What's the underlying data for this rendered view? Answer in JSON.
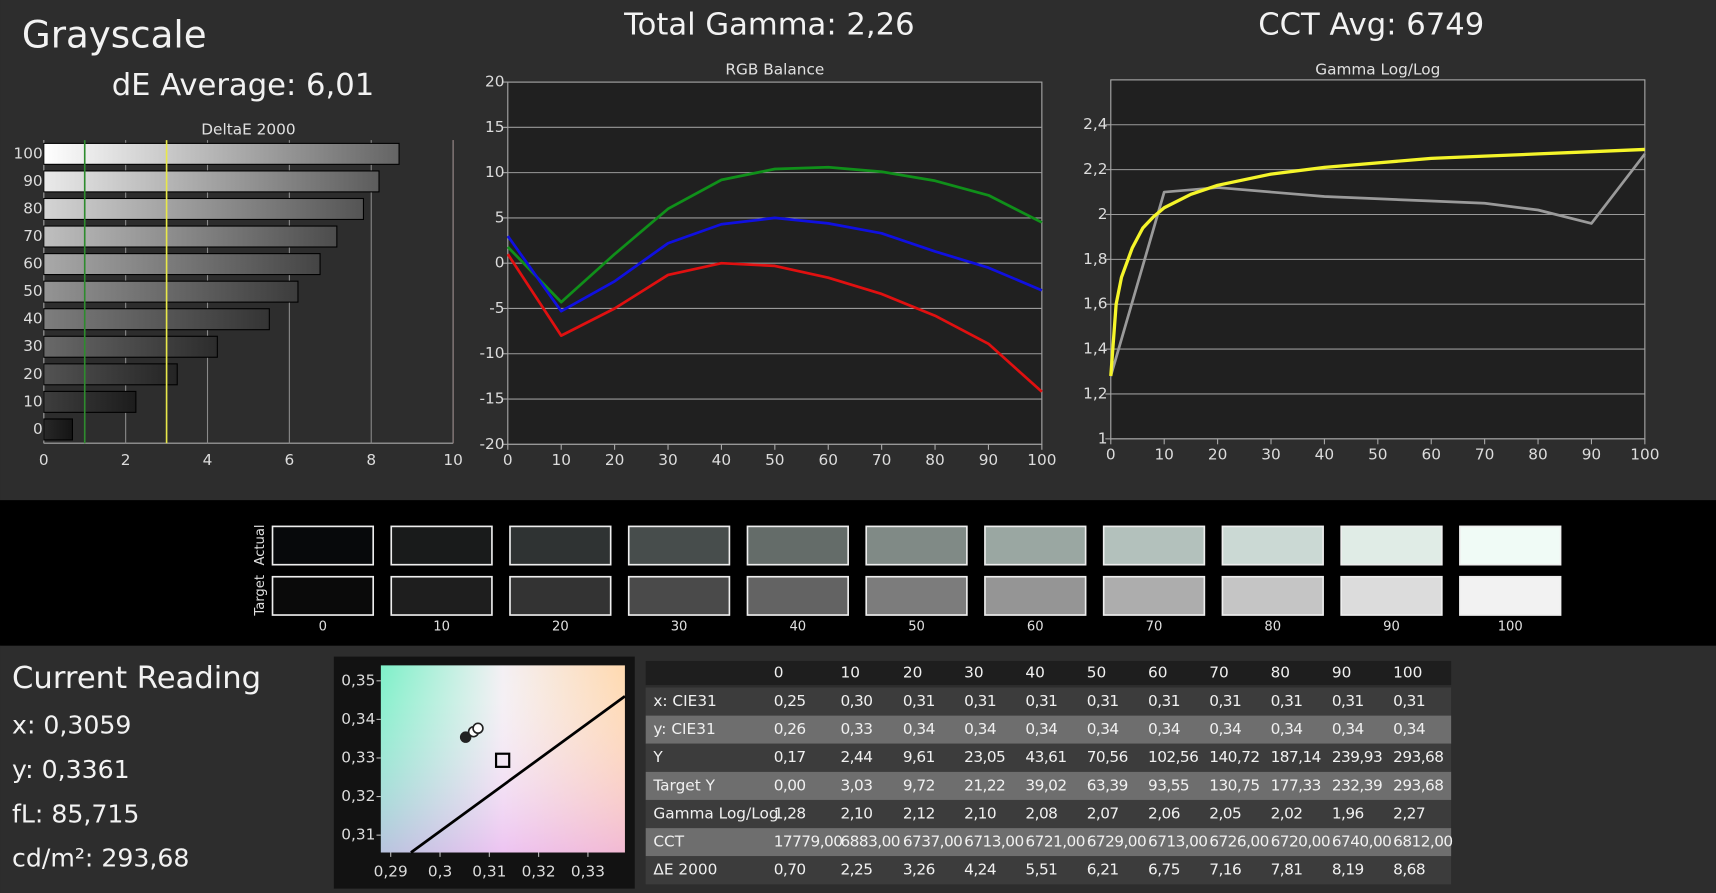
{
  "header": {
    "title": "Grayscale",
    "de_average": "dE Average: 6,01",
    "total_gamma": "Total Gamma: 2,26",
    "cct_avg": "CCT Avg: 6749"
  },
  "chart_data": [
    {
      "type": "bar",
      "orientation": "horizontal",
      "title": "DeltaE 2000",
      "categories": [
        "0",
        "10",
        "20",
        "30",
        "40",
        "50",
        "60",
        "70",
        "80",
        "90",
        "100"
      ],
      "values": [
        0.7,
        2.25,
        3.26,
        4.24,
        5.51,
        6.21,
        6.75,
        7.16,
        7.81,
        8.19,
        8.68
      ],
      "xlim": [
        0,
        10
      ],
      "xticks": [
        0,
        2,
        4,
        6,
        8,
        10
      ],
      "grid": true,
      "reference_lines": [
        {
          "value": 1,
          "color": "#2e8b2e"
        },
        {
          "value": 3,
          "color": "#e8e84a"
        }
      ]
    },
    {
      "type": "line",
      "title": "RGB Balance",
      "x": [
        0,
        10,
        20,
        30,
        40,
        50,
        60,
        70,
        80,
        90,
        100
      ],
      "series": [
        {
          "color": "#e01010",
          "values": [
            1,
            -8,
            -5,
            -1.3,
            0,
            -0.3,
            -1.6,
            -3.4,
            -5.8,
            -8.9,
            -14.2
          ]
        },
        {
          "color": "#10901a",
          "values": [
            1.8,
            -4.3,
            1,
            6,
            9.2,
            10.4,
            10.6,
            10.1,
            9.1,
            7.5,
            4.5
          ]
        },
        {
          "color": "#1010e0",
          "values": [
            3,
            -5.3,
            -2,
            2.2,
            4.3,
            5,
            4.4,
            3.3,
            1.3,
            -0.5,
            -3
          ]
        }
      ],
      "xlim": [
        0,
        100
      ],
      "xticks": [
        0,
        10,
        20,
        30,
        40,
        50,
        60,
        70,
        80,
        90,
        100
      ],
      "ylim": [
        -20,
        20
      ],
      "yticks": [
        -20,
        -15,
        -10,
        -5,
        0,
        5,
        10,
        15,
        20
      ],
      "grid": true
    },
    {
      "type": "line",
      "title": "Gamma Log/Log",
      "x": [
        0,
        10,
        20,
        30,
        40,
        50,
        60,
        70,
        80,
        90,
        100
      ],
      "series": [
        {
          "color": "#9a9a9a",
          "values": [
            1.28,
            2.1,
            2.12,
            2.1,
            2.08,
            2.07,
            2.06,
            2.05,
            2.02,
            1.96,
            2.27
          ]
        },
        {
          "color": "#f5f52a",
          "x": [
            0,
            1,
            2,
            4,
            6,
            8,
            10,
            15,
            20,
            30,
            40,
            50,
            60,
            70,
            80,
            90,
            100
          ],
          "values": [
            1.28,
            1.6,
            1.72,
            1.85,
            1.94,
            1.99,
            2.03,
            2.09,
            2.13,
            2.18,
            2.21,
            2.23,
            2.25,
            2.26,
            2.27,
            2.28,
            2.29
          ]
        }
      ],
      "xlim": [
        0,
        100
      ],
      "xticks": [
        0,
        10,
        20,
        30,
        40,
        50,
        60,
        70,
        80,
        90,
        100
      ],
      "ylim": [
        1,
        2.6
      ],
      "yticks": [
        1,
        {
          "value": 1.2,
          "label": "1,2"
        },
        {
          "value": 1.4,
          "label": "1,4"
        },
        {
          "value": 1.6,
          "label": "1,6"
        },
        {
          "value": 1.8,
          "label": "1,8"
        },
        2,
        {
          "value": 2.2,
          "label": "2,2"
        },
        {
          "value": 2.4,
          "label": "2,4"
        }
      ],
      "grid": true
    },
    {
      "type": "scatter",
      "xlim": [
        0.288,
        0.3375
      ],
      "ylim": [
        0.3055,
        0.354
      ],
      "xticks": [
        {
          "value": 0.29,
          "label": "0,29"
        },
        {
          "value": 0.3,
          "label": "0,3"
        },
        {
          "value": 0.31,
          "label": "0,31"
        },
        {
          "value": 0.32,
          "label": "0,32"
        },
        {
          "value": 0.33,
          "label": "0,33"
        }
      ],
      "yticks": [
        {
          "value": 0.31,
          "label": "0,31"
        },
        {
          "value": 0.32,
          "label": "0,32"
        },
        {
          "value": 0.33,
          "label": "0,33"
        },
        {
          "value": 0.34,
          "label": "0,34"
        },
        {
          "value": 0.35,
          "label": "0,35"
        }
      ],
      "series": [
        {
          "marker": "line",
          "color": "#000000",
          "x": [
            0.2941,
            0.3375
          ],
          "values": [
            0.3055,
            0.346
          ]
        },
        {
          "marker": "square",
          "color": "#000000",
          "x": [
            0.3127
          ],
          "values": [
            0.3294
          ]
        },
        {
          "marker": "circle",
          "colors": [
            "#222222",
            "#ffffff",
            "#ffffff"
          ],
          "x": [
            0.3052,
            0.3068,
            0.3077
          ],
          "values": [
            0.3354,
            0.3368,
            0.3377
          ]
        }
      ]
    }
  ],
  "swatches": {
    "actual_label": "Actual",
    "target_label": "Target",
    "levels": [
      "0",
      "10",
      "20",
      "30",
      "40",
      "50",
      "60",
      "70",
      "80",
      "90",
      "100"
    ],
    "actual_colors": [
      "#07090b",
      "#191b1b",
      "#2f3333",
      "#474d4c",
      "#646c69",
      "#808a86",
      "#9aa7a2",
      "#b3c1bc",
      "#cbd9d4",
      "#e0ece6",
      "#f0fbf6"
    ],
    "target_colors": [
      "#0a0a0a",
      "#1e1e1e",
      "#333333",
      "#4a4a4a",
      "#636363",
      "#7c7c7c",
      "#959595",
      "#adadad",
      "#c5c5c5",
      "#dcdcdc",
      "#f2f2f2"
    ]
  },
  "current_reading": {
    "title": "Current Reading",
    "lines": [
      "x: 0,3059",
      "y: 0,3361",
      "fL: 85,715",
      "cd/m²: 293,68"
    ]
  },
  "table": {
    "columns": [
      "0",
      "10",
      "20",
      "30",
      "40",
      "50",
      "60",
      "70",
      "80",
      "90",
      "100"
    ],
    "rows": [
      [
        "x: CIE31",
        "0,25",
        "0,30",
        "0,31",
        "0,31",
        "0,31",
        "0,31",
        "0,31",
        "0,31",
        "0,31",
        "0,31",
        "0,31"
      ],
      [
        "y: CIE31",
        "0,26",
        "0,33",
        "0,34",
        "0,34",
        "0,34",
        "0,34",
        "0,34",
        "0,34",
        "0,34",
        "0,34",
        "0,34"
      ],
      [
        "Y",
        "0,17",
        "2,44",
        "9,61",
        "23,05",
        "43,61",
        "70,56",
        "102,56",
        "140,72",
        "187,14",
        "239,93",
        "293,68"
      ],
      [
        "Target Y",
        "0,00",
        "3,03",
        "9,72",
        "21,22",
        "39,02",
        "63,39",
        "93,55",
        "130,75",
        "177,33",
        "232,39",
        "293,68"
      ],
      [
        "Gamma Log/Log",
        "1,28",
        "2,10",
        "2,12",
        "2,10",
        "2,08",
        "2,07",
        "2,06",
        "2,05",
        "2,02",
        "1,96",
        "2,27"
      ],
      [
        "CCT",
        "17779,00",
        "6883,00",
        "6737,00",
        "6713,00",
        "6721,00",
        "6729,00",
        "6713,00",
        "6726,00",
        "6720,00",
        "6740,00",
        "6812,00"
      ],
      [
        "ΔE 2000",
        "0,70",
        "2,25",
        "3,26",
        "4,24",
        "5,51",
        "6,21",
        "6,75",
        "7,16",
        "7,81",
        "8,19",
        "8,68"
      ]
    ]
  }
}
